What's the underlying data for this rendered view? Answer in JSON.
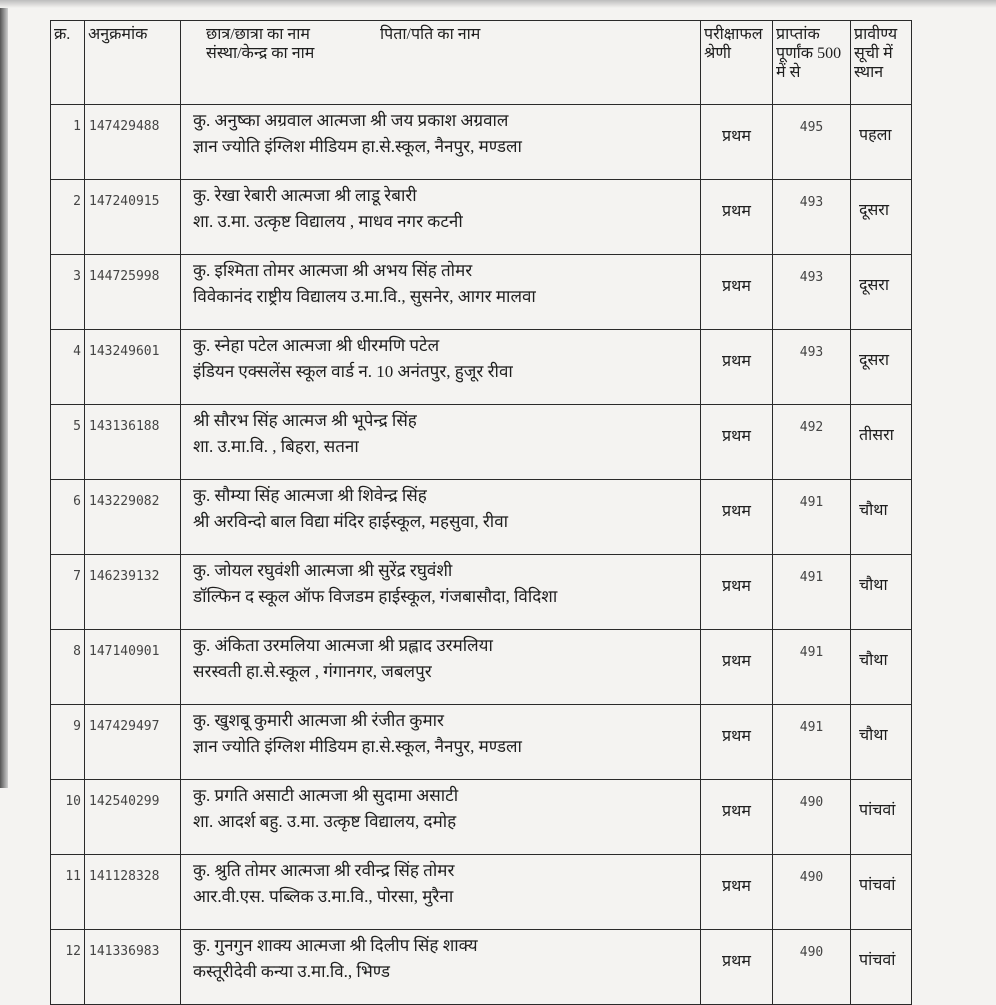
{
  "header": {
    "serial": "क्र.",
    "roll_no": "अनुक्रमांक",
    "student_name": "छात्र/छात्रा का नाम",
    "father_name": "पिता/पति का नाम",
    "institution": "संस्था/केन्द्र का नाम",
    "result_division": "परीक्षाफल श्रेणी",
    "marks": "प्राप्तांक पूर्णांक 500 में से",
    "merit_rank": "प्रावीण्य सूची में स्थान"
  },
  "rows": [
    {
      "sn": "1",
      "roll": "147429488",
      "name": "कु. अनुष्का अग्रवाल आत्मजा श्री जय प्रकाश अग्रवाल",
      "school": "ज्ञान ज्योति इंग्लिश मीडियम हा.से.स्कूल, नैनपुर, मण्डला",
      "grade": "प्रथम",
      "marks": "495",
      "rank": "पहला"
    },
    {
      "sn": "2",
      "roll": "147240915",
      "name": "कु. रेखा रेबारी आत्मजा श्री लाडू रेबारी",
      "school": "शा. उ.मा. उत्कृष्ट विद्यालय , माधव नगर कटनी",
      "grade": "प्रथम",
      "marks": "493",
      "rank": "दूसरा"
    },
    {
      "sn": "3",
      "roll": "144725998",
      "name": "कु. इश्मिता तोमर आत्मजा श्री अभय सिंह तोमर",
      "school": "विवेकानंद राष्ट्रीय विद्यालय उ.मा.वि., सुसनेर, आगर मालवा",
      "grade": "प्रथम",
      "marks": "493",
      "rank": "दूसरा"
    },
    {
      "sn": "4",
      "roll": "143249601",
      "name": "कु. स्नेहा पटेल आत्मजा श्री धीरमणि पटेल",
      "school": "इंडियन एक्सलेंस स्कूल वार्ड न. 10 अनंतपुर, हुजूर रीवा",
      "grade": "प्रथम",
      "marks": "493",
      "rank": "दूसरा"
    },
    {
      "sn": "5",
      "roll": "143136188",
      "name": "श्री सौरभ सिंह आत्मज श्री भूपेन्द्र सिंह",
      "school": "शा. उ.मा.वि. , बिहरा, सतना",
      "grade": "प्रथम",
      "marks": "492",
      "rank": "तीसरा"
    },
    {
      "sn": "6",
      "roll": "143229082",
      "name": "कु. सौम्या सिंह आत्मजा श्री शिवेन्द्र सिंह",
      "school": "श्री अरविन्दो बाल विद्या मंदिर हाईस्कूल, महसुवा, रीवा",
      "grade": "प्रथम",
      "marks": "491",
      "rank": "चौथा"
    },
    {
      "sn": "7",
      "roll": "146239132",
      "name": "कु. जोयल रघुवंशी आत्मजा श्री सुरेंद्र रघुवंशी",
      "school": "डॉल्फिन द स्कूल ऑफ विजडम हाईस्कूल, गंजबासौदा, विदिशा",
      "grade": "प्रथम",
      "marks": "491",
      "rank": "चौथा"
    },
    {
      "sn": "8",
      "roll": "147140901",
      "name": "कु. अंकिता उरमलिया आत्मजा श्री प्रह्लाद उरमलिया",
      "school": "सरस्वती हा.से.स्कूल , गंगानगर, जबलपुर",
      "grade": "प्रथम",
      "marks": "491",
      "rank": "चौथा"
    },
    {
      "sn": "9",
      "roll": "147429497",
      "name": "कु. खुशबू कुमारी आत्मजा श्री रंजीत कुमार",
      "school": "ज्ञान ज्योति इंग्लिश मीडियम हा.से.स्कूल, नैनपुर, मण्डला",
      "grade": "प्रथम",
      "marks": "491",
      "rank": "चौथा"
    },
    {
      "sn": "10",
      "roll": "142540299",
      "name": "कु. प्रगति असाटी आत्मजा श्री सुदामा असाटी",
      "school": "शा. आदर्श बहु. उ.मा. उत्कृष्ट विद्यालय, दमोह",
      "grade": "प्रथम",
      "marks": "490",
      "rank": "पांचवां"
    },
    {
      "sn": "11",
      "roll": "141128328",
      "name": "कु. श्रुति तोमर आत्मजा श्री रवीन्द्र सिंह तोमर",
      "school": "आर.वी.एस. पब्लिक उ.मा.वि., पोरसा, मुरैना",
      "grade": "प्रथम",
      "marks": "490",
      "rank": "पांचवां"
    },
    {
      "sn": "12",
      "roll": "141336983",
      "name": "कु. गुनगुन शाक्य आत्मजा श्री दिलीप सिंह शाक्य",
      "school": "कस्तूरीदेवी कन्या उ.मा.वि., भिण्ड",
      "grade": "प्रथम",
      "marks": "490",
      "rank": "पांचवां"
    }
  ]
}
